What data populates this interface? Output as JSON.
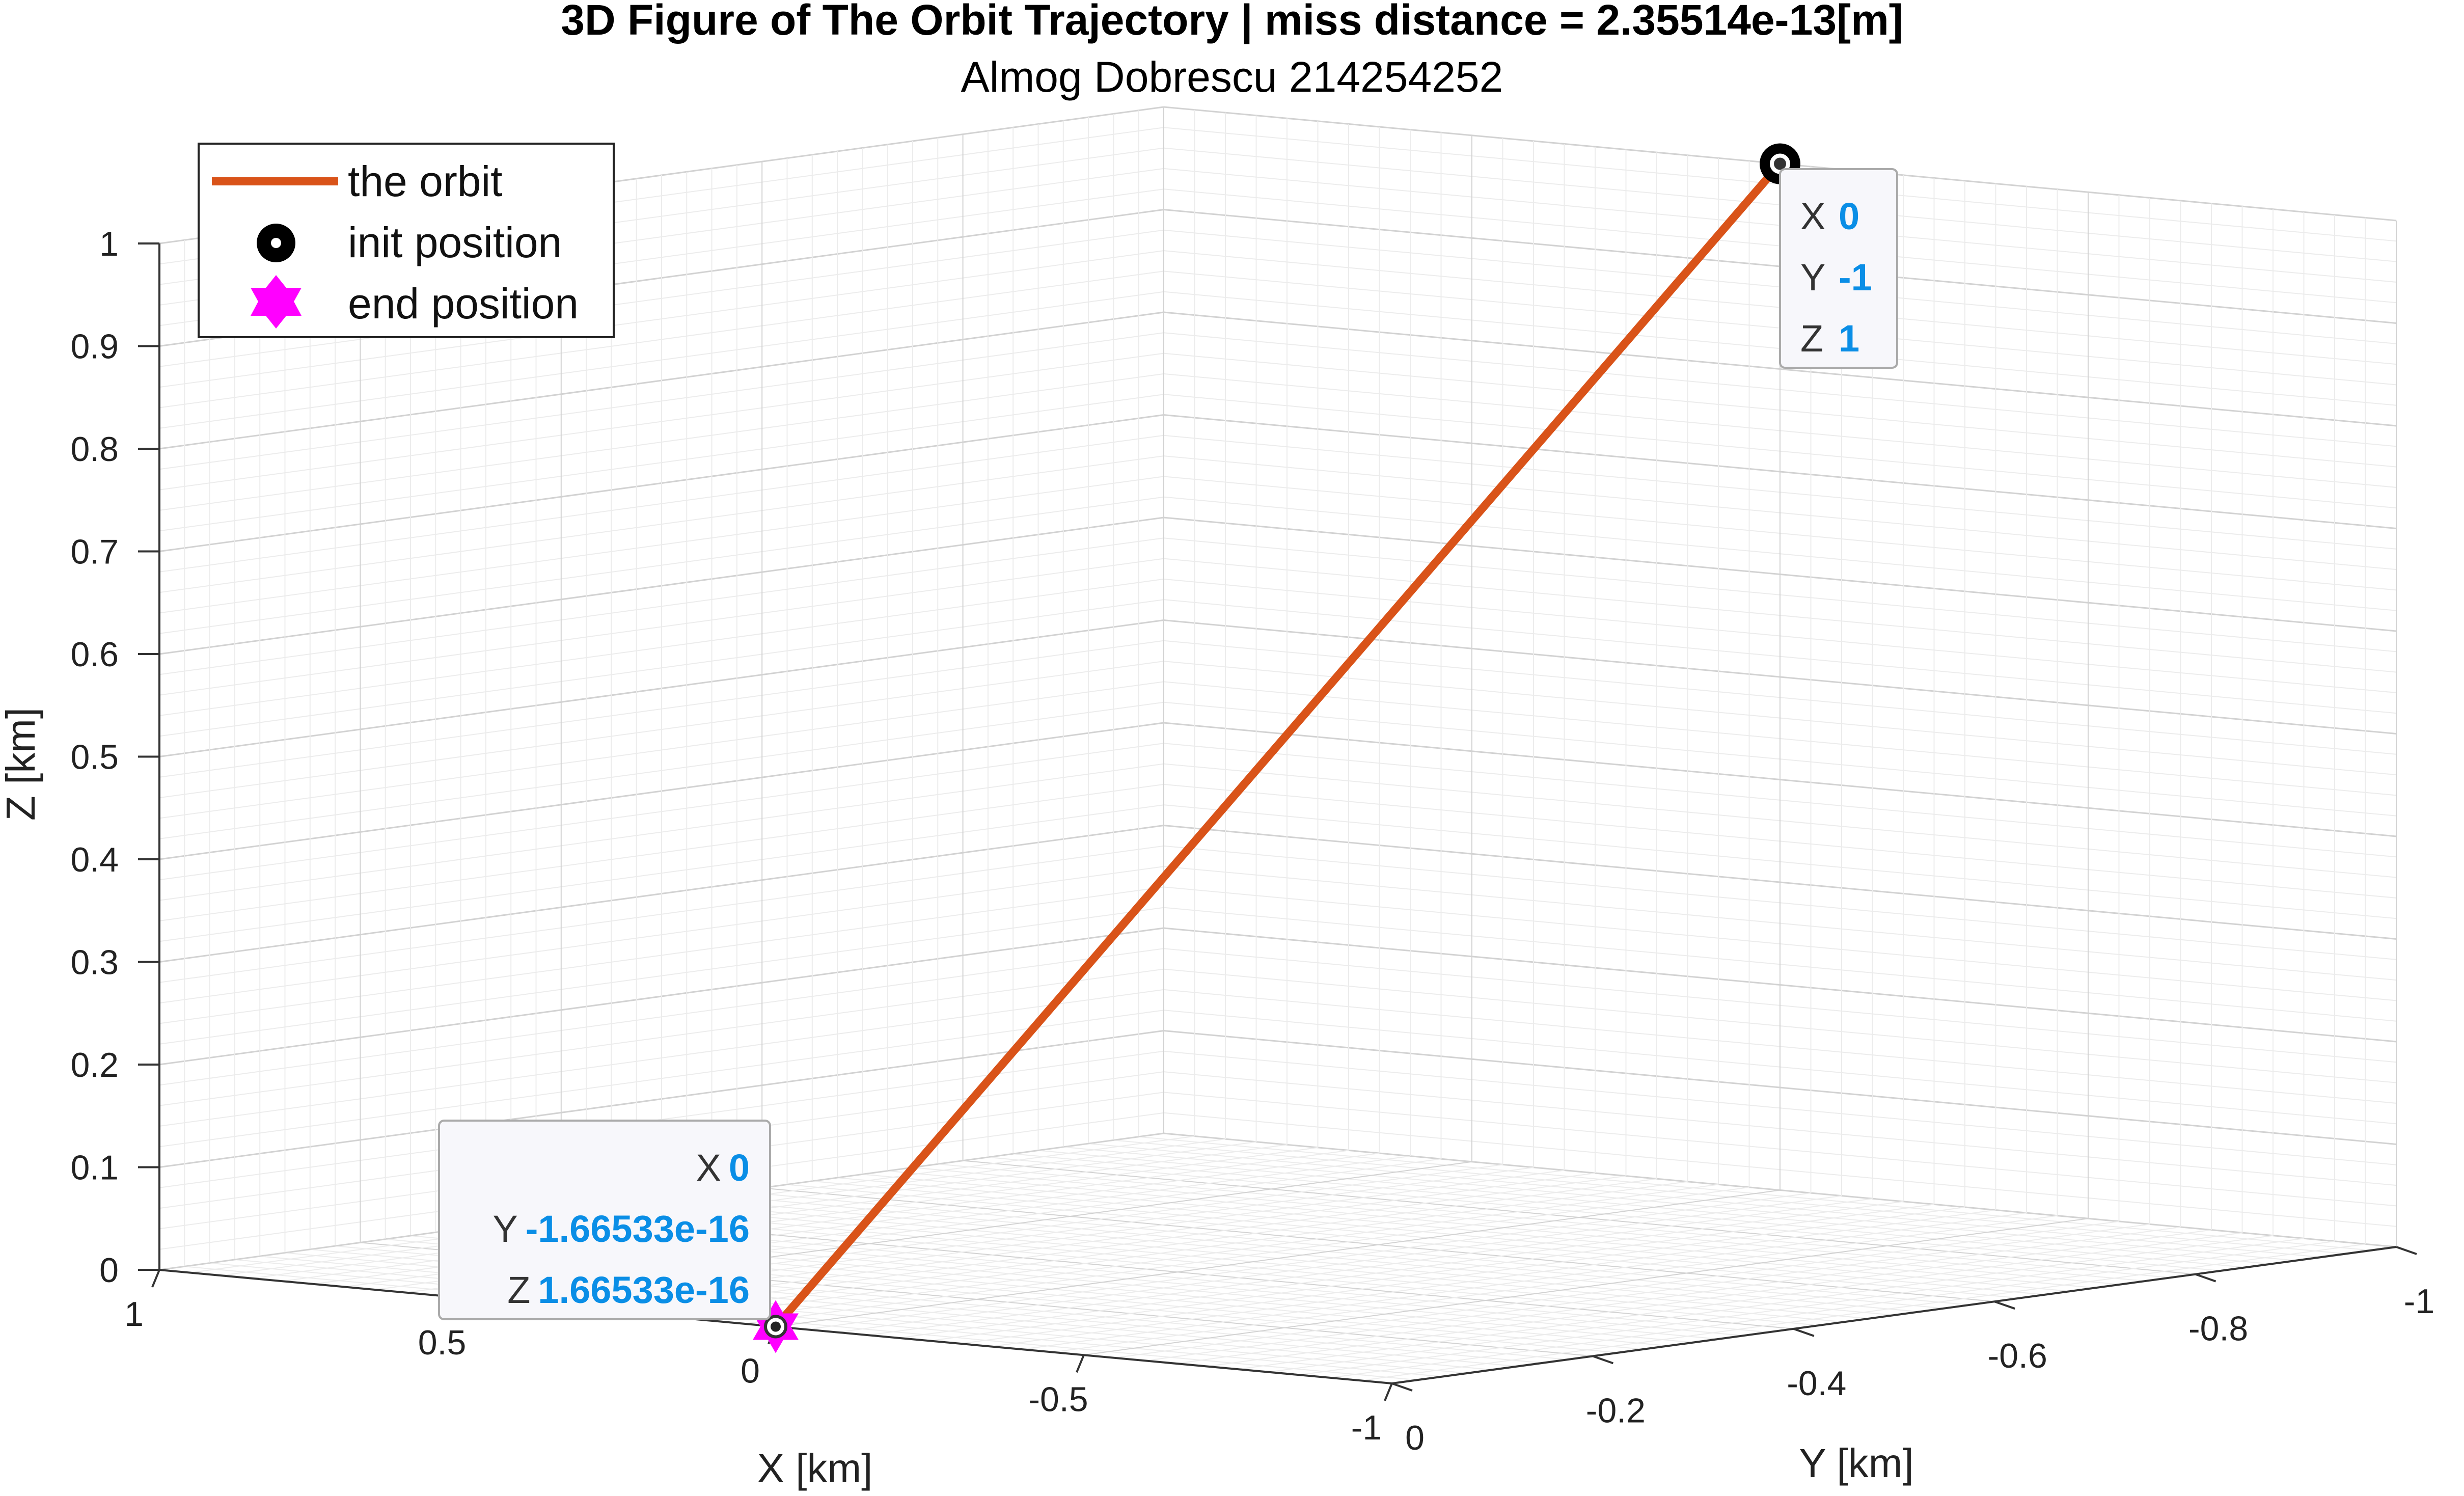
{
  "chart_data": {
    "type": "line3d",
    "title": "3D Figure of The Orbit Trajectory | miss distance = 2.35514e-13[m]",
    "subtitle": "Almog Dobrescu 214254252",
    "xlabel": "X [km]",
    "ylabel": "Y [km]",
    "zlabel": "Z [km]",
    "xlim": [
      -1,
      1
    ],
    "ylim": [
      -1,
      0
    ],
    "zlim": [
      0,
      1
    ],
    "grid": true,
    "x_ticks": [
      "1",
      "0.5",
      "0",
      "-0.5",
      "-1"
    ],
    "y_ticks": [
      "0",
      "-0.2",
      "-0.4",
      "-0.6",
      "-0.8",
      "-1"
    ],
    "z_ticks": [
      "0",
      "0.1",
      "0.2",
      "0.3",
      "0.4",
      "0.5",
      "0.6",
      "0.7",
      "0.8",
      "0.9",
      "1"
    ],
    "series": [
      {
        "name": "the orbit",
        "color": "#d95319",
        "x": [
          0,
          0
        ],
        "y": [
          -1,
          0
        ],
        "z": [
          1,
          0
        ]
      }
    ],
    "markers": [
      {
        "name": "init position",
        "color": "#000000",
        "x": 0,
        "y": -1,
        "z": 1
      },
      {
        "name": "end position",
        "color": "#ff00ff",
        "x": 0,
        "y": 0,
        "z": 0
      }
    ],
    "legend_position": "top-left",
    "datatips": [
      {
        "rows": [
          {
            "k": "X",
            "v": "0"
          },
          {
            "k": "Y",
            "v": "-1"
          },
          {
            "k": "Z",
            "v": "1"
          }
        ]
      },
      {
        "rows": [
          {
            "k": "X",
            "v": "0"
          },
          {
            "k": "Y",
            "v": "-1.66533e-16"
          },
          {
            "k": "Z",
            "v": "1.66533e-16"
          }
        ]
      }
    ]
  }
}
